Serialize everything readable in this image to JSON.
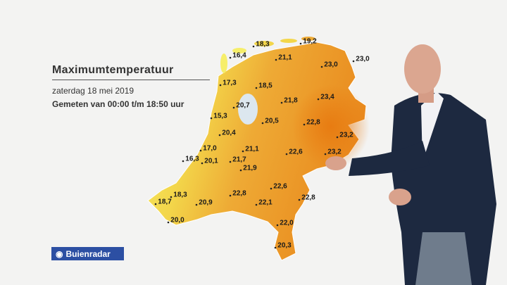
{
  "header": {
    "title": "Maximumtemperatuur",
    "date": "zaterdag 18 mei 2019",
    "subtitle": "Gemeten van 00:00 t/m 18:50 uur"
  },
  "stations": [
    "18,3",
    "19,2",
    "16,4",
    "21,1",
    "23,0",
    "23,0",
    "17,3",
    "18,5",
    "20,7",
    "21,8",
    "23,4",
    "15,3",
    "20,5",
    "22,8",
    "20,4",
    "23,2",
    "17,0",
    "21,1",
    "22,6",
    "23,2",
    "16,3",
    "20,1",
    "21,7",
    "21,9",
    "18,3",
    "22,6",
    "22,8",
    "18,7",
    "20,9",
    "22,1",
    "22,8",
    "20,0",
    "22,0",
    "20,3"
  ],
  "logo": "Buienradar"
}
